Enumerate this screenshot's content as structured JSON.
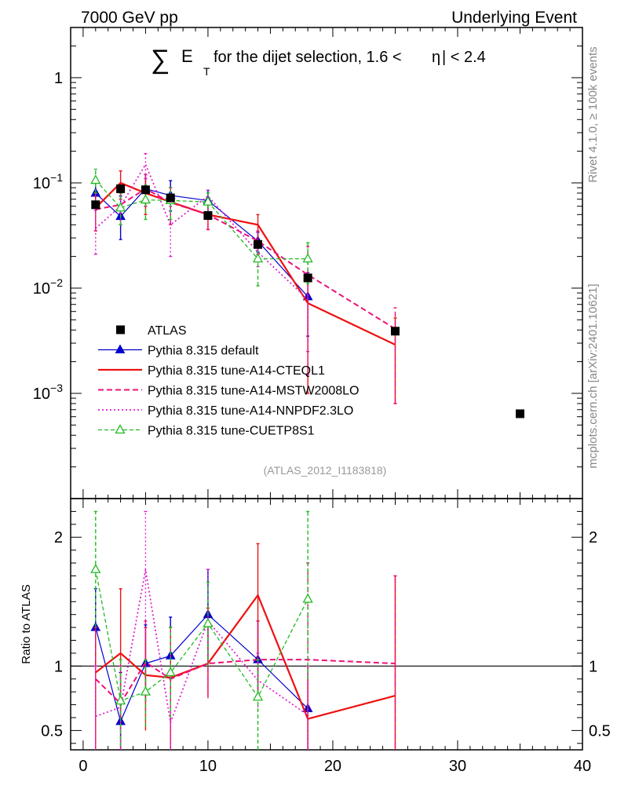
{
  "header": {
    "left": "7000 GeV pp",
    "right": "Underlying Event"
  },
  "side_text": {
    "rivet": "Rivet 4.1.0, ≥ 100k events",
    "site": "mcplots.cern.ch [arXiv:2401.10621]"
  },
  "chart_data": {
    "type": "line",
    "title_sum": "∑",
    "title_main": "E",
    "title_sub": "T",
    "title_rest": "for the dijet selection, 1.6 <",
    "title_eta": "η",
    "title_end": "| < 2.4",
    "analysis_id": "(ATLAS_2012_I1183818)",
    "xlim": [
      -1,
      40
    ],
    "ylim_main": [
      0.0001,
      3
    ],
    "yscale_main": "log",
    "ylim_ratio": [
      0.35,
      2.3
    ],
    "ratio_ylabel": "Ratio to ATLAS",
    "x_ticks": [
      "0",
      "10",
      "20",
      "30",
      "40"
    ],
    "main_ticks": [
      {
        "value": 1,
        "base": "1",
        "exp": ""
      },
      {
        "value": 0.1,
        "base": "10",
        "exp": "−1"
      },
      {
        "value": 0.01,
        "base": "10",
        "exp": "−2"
      },
      {
        "value": 0.001,
        "base": "10",
        "exp": "−3"
      }
    ],
    "ratio_ticks": [
      {
        "value": 2,
        "label": "2"
      },
      {
        "value": 1,
        "label": "1"
      },
      {
        "value": 0.5,
        "label": "0.5"
      }
    ],
    "data": {
      "name": "ATLAS",
      "color": "#000000",
      "x": [
        1,
        3,
        5,
        7,
        10,
        14,
        18,
        25,
        35
      ],
      "y": [
        0.062,
        0.088,
        0.086,
        0.072,
        0.049,
        0.026,
        0.0125,
        0.0039,
        0.00064
      ]
    },
    "series": [
      {
        "name": "Pythia 8.315 default",
        "color": "#0000cc",
        "dash": "",
        "marker": "triangle-filled",
        "width": 1.2,
        "x": [
          1,
          3,
          5,
          7,
          10,
          14,
          18
        ],
        "y": [
          0.08,
          0.048,
          0.088,
          0.076,
          0.068,
          0.028,
          0.0083
        ],
        "y_err": [
          0.066,
          0.029,
          0.06,
          0.054,
          0.052,
          0.022,
          0.0035
        ],
        "y_err_hi": [
          0.1,
          0.075,
          0.12,
          0.105,
          0.085,
          0.034,
          0.014
        ],
        "ratio": [
          1.3,
          0.57,
          1.02,
          1.08,
          1.4,
          1.05,
          0.67
        ],
        "ratio_lo": [
          1.0,
          0.3,
          0.72,
          0.76,
          1.05,
          0.75,
          0.2
        ],
        "ratio_hi": [
          1.6,
          0.95,
          1.32,
          1.38,
          1.75,
          1.35,
          1.0
        ]
      },
      {
        "name": "Pythia 8.315 tune-A14-CTEQL1",
        "color": "#ee1111",
        "dash": "",
        "marker": "none",
        "width": 2.2,
        "x": [
          1,
          3,
          5,
          7,
          10,
          14,
          18,
          25
        ],
        "y": [
          0.058,
          0.1,
          0.08,
          0.066,
          0.05,
          0.04,
          0.0072,
          0.0029
        ],
        "y_err": [
          0.035,
          0.07,
          0.05,
          0.04,
          0.036,
          0.028,
          0.001,
          0.0008
        ],
        "y_err_hi": [
          0.08,
          0.13,
          0.11,
          0.09,
          0.065,
          0.05,
          0.013,
          0.0052
        ],
        "ratio": [
          0.95,
          1.1,
          0.93,
          0.91,
          1.02,
          1.55,
          0.59,
          0.77
        ],
        "ratio_lo": [
          0.3,
          0.5,
          0.5,
          0.3,
          0.77,
          0.8,
          0.25,
          0.25
        ],
        "ratio_hi": [
          1.3,
          1.6,
          1.3,
          1.3,
          1.45,
          1.95,
          1.0,
          1.7
        ]
      },
      {
        "name": "Pythia 8.315 tune-A14-MSTW2008LO",
        "color": "#ee1177",
        "dash": "7,4",
        "marker": "none",
        "width": 2.0,
        "x": [
          1,
          3,
          5,
          7,
          10,
          14,
          18,
          25
        ],
        "y": [
          0.056,
          0.062,
          0.088,
          0.065,
          0.05,
          0.028,
          0.0134,
          0.0041
        ],
        "y_err": [
          0.035,
          0.04,
          0.06,
          0.04,
          0.036,
          0.021,
          0.0025,
          0.0008
        ],
        "y_err_hi": [
          0.08,
          0.085,
          0.12,
          0.09,
          0.065,
          0.035,
          0.025,
          0.0065
        ],
        "ratio": [
          0.9,
          0.71,
          1.03,
          0.9,
          1.02,
          1.05,
          1.05,
          1.02
        ],
        "ratio_lo": [
          0.3,
          0.35,
          0.65,
          0.3,
          0.75,
          0.75,
          0.3,
          0.3
        ],
        "ratio_hi": [
          1.3,
          1.0,
          1.35,
          1.3,
          1.35,
          1.35,
          1.8,
          1.7
        ]
      },
      {
        "name": "Pythia 8.315 tune-A14-NNPDF2.3LO",
        "color": "#dd22cc",
        "dash": "2,3",
        "marker": "none",
        "width": 1.8,
        "x": [
          1,
          3,
          5,
          7,
          10,
          14,
          18
        ],
        "y": [
          0.037,
          0.06,
          0.15,
          0.04,
          0.075,
          0.022,
          0.0078
        ],
        "y_err": [
          0.021,
          0.04,
          0.11,
          0.02,
          0.05,
          0.016,
          0.0015
        ],
        "y_err_hi": [
          0.055,
          0.08,
          0.19,
          0.06,
          0.085,
          0.028,
          0.012
        ],
        "ratio": [
          0.61,
          0.68,
          1.75,
          0.56,
          1.35,
          0.89,
          0.62
        ],
        "ratio_lo": [
          0.35,
          0.35,
          1.2,
          0.35,
          1.0,
          0.65,
          0.35
        ],
        "ratio_hi": [
          1.0,
          1.0,
          2.2,
          0.9,
          1.75,
          1.1,
          1.0
        ]
      },
      {
        "name": "Pythia 8.315 tune-CUETP8S1",
        "color": "#22bb22",
        "dash": "5,3",
        "marker": "triangle-open",
        "width": 1.3,
        "x": [
          1,
          3,
          5,
          7,
          10,
          14,
          18
        ],
        "y": [
          0.106,
          0.058,
          0.069,
          0.068,
          0.066,
          0.019,
          0.019
        ],
        "y_err": [
          0.08,
          0.04,
          0.045,
          0.045,
          0.05,
          0.0105,
          0.011
        ],
        "y_err_hi": [
          0.135,
          0.08,
          0.095,
          0.09,
          0.08,
          0.027,
          0.027
        ],
        "ratio": [
          1.75,
          0.73,
          0.8,
          0.95,
          1.33,
          0.76,
          1.52
        ],
        "ratio_lo": [
          1.3,
          0.38,
          0.53,
          0.6,
          1.0,
          0.35,
          0.9
        ],
        "ratio_hi": [
          2.2,
          1.05,
          1.05,
          1.3,
          1.65,
          1.05,
          2.2
        ]
      }
    ]
  }
}
